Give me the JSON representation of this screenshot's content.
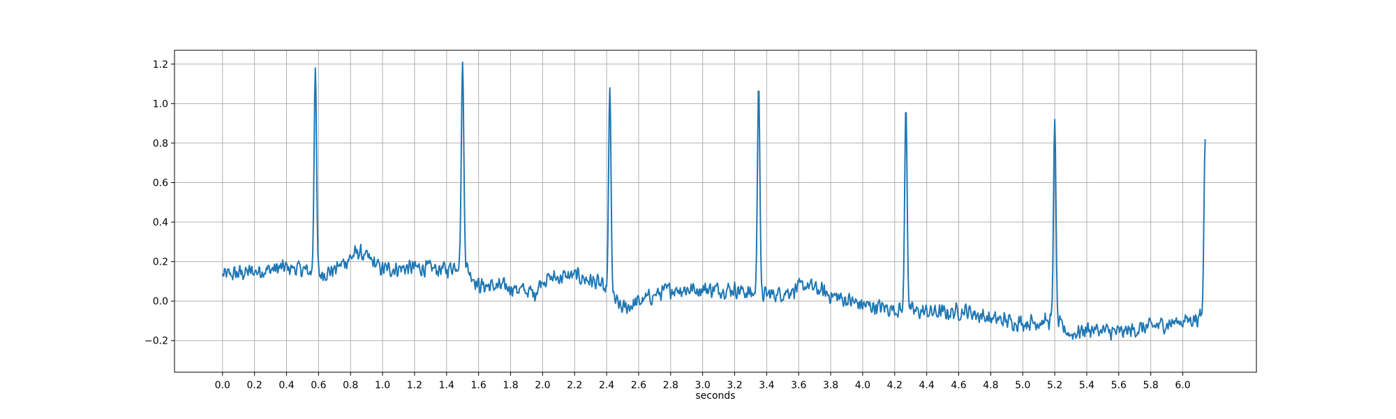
{
  "chart_data": {
    "type": "line",
    "title": "",
    "xlabel": "seconds",
    "ylabel": "",
    "xlim": [
      -0.3,
      6.46
    ],
    "ylim": [
      -0.36,
      1.27
    ],
    "grid": true,
    "line_color": "#1f77b4",
    "xticks": [
      0.0,
      0.2,
      0.4,
      0.6,
      0.8,
      1.0,
      1.2,
      1.4,
      1.6,
      1.8,
      2.0,
      2.2,
      2.4,
      2.6,
      2.8,
      3.0,
      3.2,
      3.4,
      3.6,
      3.8,
      4.0,
      4.2,
      4.4,
      4.6,
      4.8,
      5.0,
      5.2,
      5.4,
      5.6,
      5.8,
      6.0
    ],
    "xtick_labels": [
      "0.0",
      "0.2",
      "0.4",
      "0.6",
      "0.8",
      "1.0",
      "1.2",
      "1.4",
      "1.6",
      "1.8",
      "2.0",
      "2.2",
      "2.4",
      "2.6",
      "2.8",
      "3.0",
      "3.2",
      "3.4",
      "3.6",
      "3.8",
      "4.0",
      "4.2",
      "4.4",
      "4.6",
      "4.8",
      "5.0",
      "5.2",
      "5.4",
      "5.6",
      "5.8",
      "6.0"
    ],
    "yticks": [
      -0.2,
      0.0,
      0.2,
      0.4,
      0.6,
      0.8,
      1.0,
      1.2
    ],
    "ytick_labels": [
      "−0.2",
      "0.0",
      "0.2",
      "0.4",
      "0.6",
      "0.8",
      "1.0",
      "1.2"
    ],
    "baseline": [
      [
        0.0,
        0.13
      ],
      [
        0.2,
        0.15
      ],
      [
        0.4,
        0.17
      ],
      [
        0.5,
        0.16
      ],
      [
        0.6,
        0.13
      ],
      [
        0.7,
        0.16
      ],
      [
        0.85,
        0.25
      ],
      [
        1.0,
        0.16
      ],
      [
        1.2,
        0.17
      ],
      [
        1.4,
        0.16
      ],
      [
        1.5,
        0.2
      ],
      [
        1.6,
        0.08
      ],
      [
        1.8,
        0.07
      ],
      [
        1.95,
        0.04
      ],
      [
        2.0,
        0.11
      ],
      [
        2.2,
        0.13
      ],
      [
        2.35,
        0.09
      ],
      [
        2.5,
        -0.04
      ],
      [
        2.7,
        0.03
      ],
      [
        2.8,
        0.06
      ],
      [
        3.0,
        0.06
      ],
      [
        3.2,
        0.06
      ],
      [
        3.35,
        0.03
      ],
      [
        3.5,
        0.04
      ],
      [
        3.65,
        0.08
      ],
      [
        3.8,
        0.03
      ],
      [
        4.0,
        -0.02
      ],
      [
        4.2,
        -0.04
      ],
      [
        4.3,
        -0.05
      ],
      [
        4.5,
        -0.06
      ],
      [
        4.65,
        -0.05
      ],
      [
        4.8,
        -0.09
      ],
      [
        5.0,
        -0.11
      ],
      [
        5.2,
        -0.1
      ],
      [
        5.3,
        -0.17
      ],
      [
        5.4,
        -0.14
      ],
      [
        5.6,
        -0.16
      ],
      [
        5.8,
        -0.13
      ],
      [
        6.0,
        -0.1
      ],
      [
        6.13,
        -0.08
      ]
    ],
    "peaks": [
      {
        "t": 0.58,
        "value": 1.18
      },
      {
        "t": 1.5,
        "value": 1.21
      },
      {
        "t": 2.42,
        "value": 1.08
      },
      {
        "t": 3.35,
        "value": 1.1
      },
      {
        "t": 4.27,
        "value": 0.99
      },
      {
        "t": 5.2,
        "value": 0.92
      },
      {
        "t": 6.14,
        "value": 0.82
      }
    ],
    "noise_amplitude": 0.05,
    "duration": 6.14,
    "sample_interval": 0.004
  }
}
